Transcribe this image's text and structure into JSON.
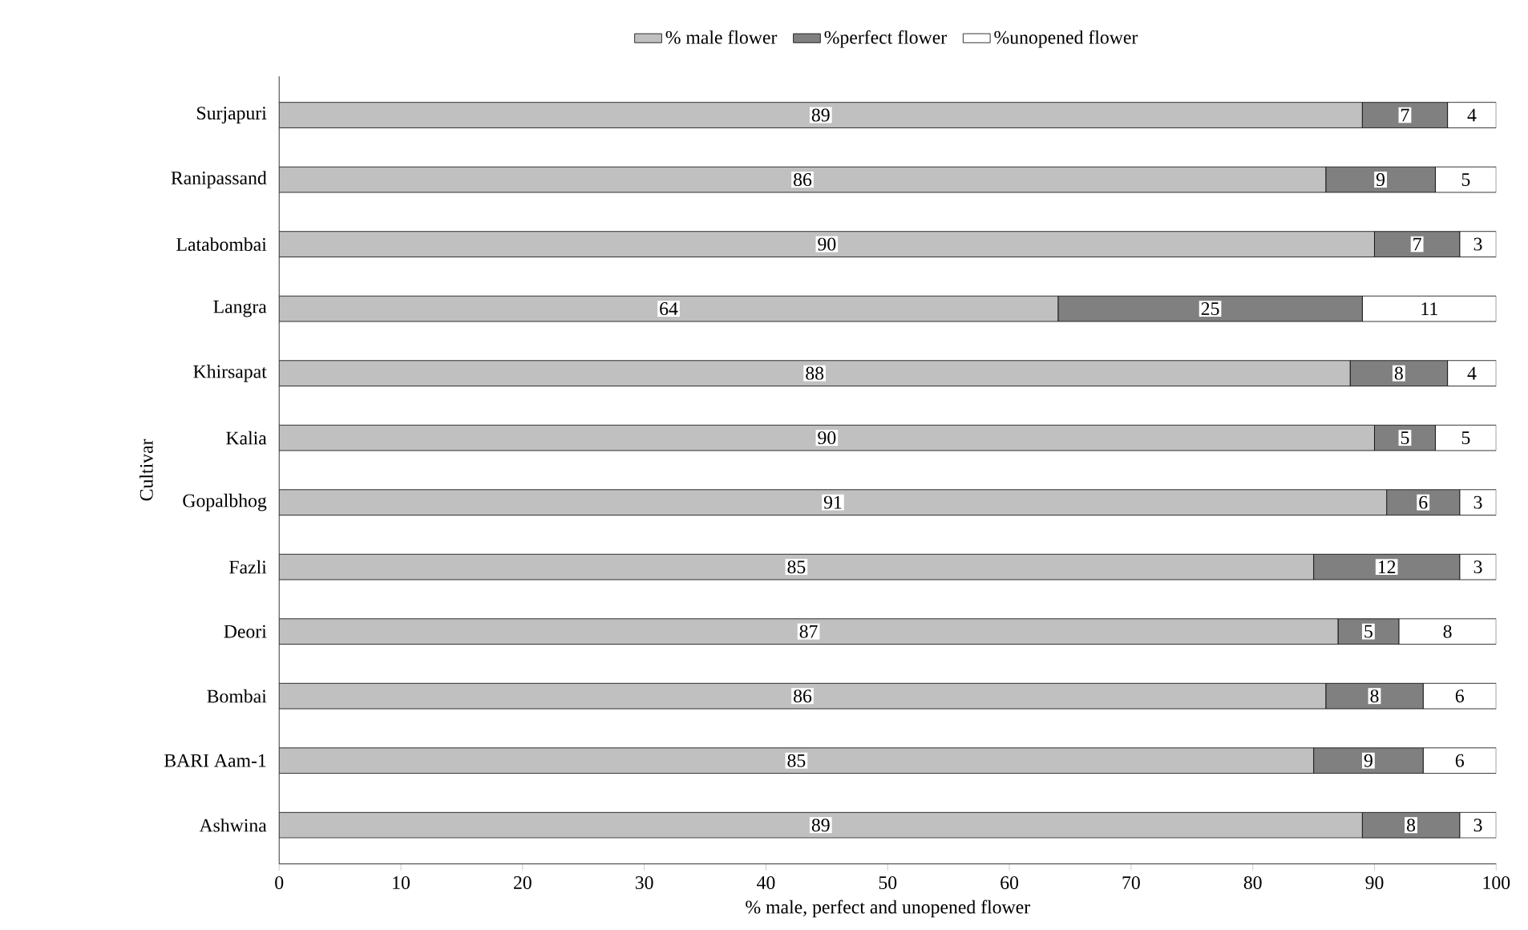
{
  "chart_data": {
    "type": "bar",
    "orientation": "horizontal",
    "stacked": true,
    "xlabel": "% male, perfect and unopened flower",
    "ylabel": "Cultivar",
    "categories": [
      "Surjapuri",
      "Ranipassand",
      "Latabombai",
      "Langra",
      "Khirsapat",
      "Kalia",
      "Gopalbhog",
      "Fazli",
      "Deori",
      "Bombai",
      "BARI Aam-1",
      "Ashwina"
    ],
    "series": [
      {
        "name": "% male flower",
        "color": "#c0c0c0",
        "values": [
          89,
          86,
          90,
          64,
          88,
          90,
          91,
          85,
          87,
          86,
          85,
          89
        ]
      },
      {
        "name": "%perfect flower",
        "color": "#808080",
        "values": [
          7,
          9,
          7,
          25,
          8,
          5,
          6,
          12,
          5,
          8,
          9,
          8
        ]
      },
      {
        "name": "%unopened flower",
        "color": "#ffffff",
        "values": [
          4,
          5,
          3,
          11,
          4,
          5,
          3,
          3,
          8,
          6,
          6,
          3
        ]
      }
    ],
    "xlim": [
      0,
      100
    ],
    "xticks": [
      0,
      10,
      20,
      30,
      40,
      50,
      60,
      70,
      80,
      90,
      100
    ],
    "data_labels": true,
    "legend": "top"
  }
}
